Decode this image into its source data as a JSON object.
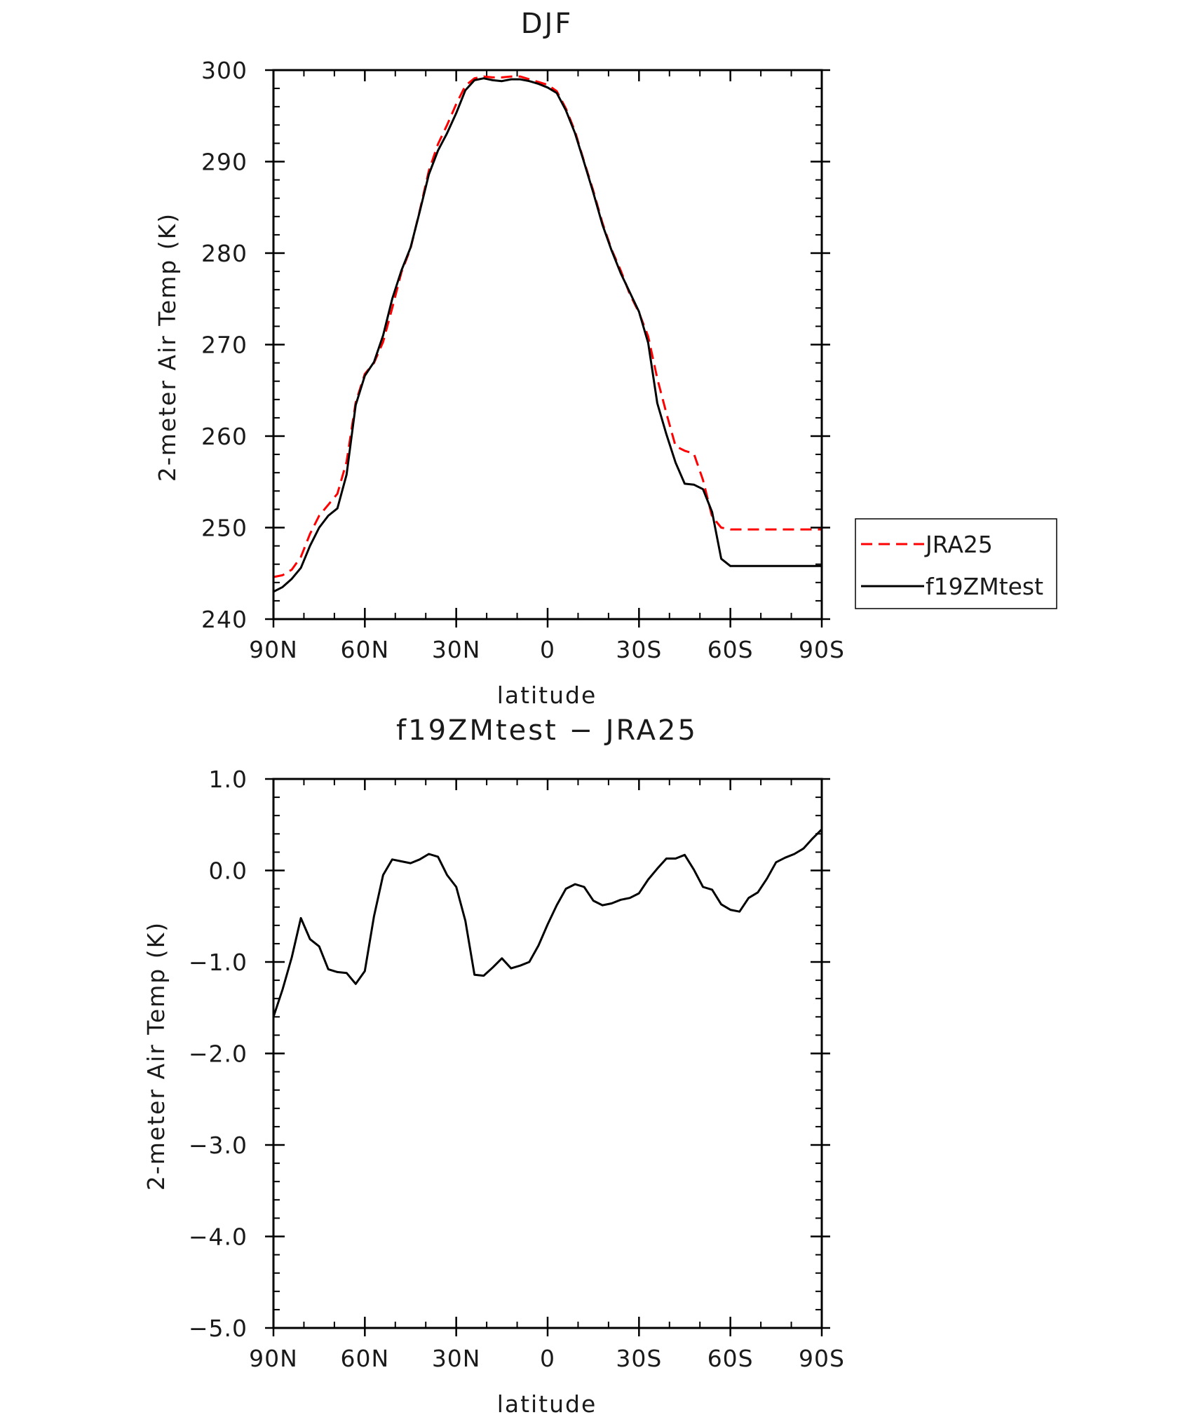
{
  "chart_data": [
    {
      "type": "line",
      "title": "DJF",
      "xlabel": "latitude",
      "ylabel": "2-meter Air Temp (K)",
      "x": [
        90,
        87,
        84,
        81,
        78,
        75,
        72,
        69,
        66,
        63,
        60,
        57,
        54,
        51,
        48,
        45,
        42,
        39,
        36,
        33,
        30,
        27,
        24,
        21,
        18,
        15,
        12,
        9,
        6,
        3,
        0,
        -3,
        -6,
        -9,
        -12,
        -15,
        -18,
        -21,
        -24,
        -27,
        -30,
        -33,
        -36,
        -39,
        -42,
        -45,
        -48,
        -51,
        -54,
        -57,
        -60,
        -63,
        -66,
        -69,
        -72,
        -75,
        -78,
        -81,
        -84,
        -87,
        -90
      ],
      "xlim": [
        90,
        -90
      ],
      "xticks": [
        90,
        60,
        30,
        0,
        -30,
        -60,
        -90
      ],
      "xticklabels": [
        "90N",
        "60N",
        "30N",
        "0",
        "30S",
        "60S",
        "90S"
      ],
      "ylim": [
        240,
        300
      ],
      "yticks": [
        240,
        250,
        260,
        270,
        280,
        290,
        300
      ],
      "yticklabels": [
        "240",
        "250",
        "260",
        "270",
        "280",
        "290",
        "300"
      ],
      "series": [
        {
          "name": "JRA25",
          "color": "#ff0000",
          "style": "dashed",
          "values": [
            244.6,
            244.8,
            245.4,
            246.8,
            249.3,
            251.3,
            252.5,
            253.7,
            257.2,
            263.7,
            266.8,
            268.0,
            270.3,
            274.0,
            277.9,
            280.5,
            284.6,
            289.0,
            291.9,
            294.0,
            296.3,
            298.3,
            299.1,
            299.3,
            299.2,
            299.2,
            299.3,
            299.3,
            299.0,
            298.7,
            298.4,
            297.7,
            295.8,
            293.3,
            290.0,
            286.8,
            283.3,
            280.4,
            278.1,
            275.5,
            273.5,
            270.9,
            266.3,
            262.5,
            258.9,
            258.4,
            258.1,
            255.2,
            251.2,
            250.0,
            249.8,
            249.8,
            249.8,
            249.8,
            249.8,
            249.8,
            249.8,
            249.8,
            249.8,
            249.8,
            249.8
          ]
        },
        {
          "name": "f19ZMtest",
          "color": "#000000",
          "style": "solid",
          "values": [
            243.0,
            243.5,
            244.4,
            245.6,
            248.0,
            250.0,
            251.3,
            252.1,
            255.8,
            263.4,
            266.6,
            268.1,
            271.0,
            275.0,
            278.1,
            280.6,
            284.5,
            288.6,
            291.2,
            293.1,
            295.3,
            297.8,
            298.9,
            299.1,
            298.9,
            298.8,
            299.0,
            299.0,
            298.8,
            298.5,
            298.1,
            297.5,
            295.6,
            293.1,
            289.9,
            286.6,
            283.1,
            280.3,
            277.8,
            275.7,
            273.6,
            270.2,
            263.6,
            260.2,
            257.1,
            254.8,
            254.7,
            254.2,
            251.7,
            246.6,
            245.8,
            245.8,
            245.8,
            245.8,
            245.8,
            245.8,
            245.8,
            245.8,
            245.8,
            245.8,
            245.8
          ]
        }
      ],
      "legend": "right",
      "grid": false
    },
    {
      "type": "line",
      "title": "f19ZMtest − JRA25",
      "xlabel": "latitude",
      "ylabel": "2-meter Air Temp (K)",
      "x": [
        90,
        87,
        84,
        81,
        78,
        75,
        72,
        69,
        66,
        63,
        60,
        57,
        54,
        51,
        48,
        45,
        42,
        39,
        36,
        33,
        30,
        27,
        24,
        21,
        18,
        15,
        12,
        9,
        6,
        3,
        0,
        -3,
        -6,
        -9,
        -12,
        -15,
        -18,
        -21,
        -24,
        -27,
        -30,
        -33,
        -36,
        -39,
        -42,
        -45,
        -48,
        -51,
        -54,
        -57,
        -60,
        -63,
        -66,
        -69,
        -72,
        -75,
        -78,
        -81,
        -84,
        -87,
        -90
      ],
      "xlim": [
        90,
        -90
      ],
      "xticks": [
        90,
        60,
        30,
        0,
        -30,
        -60,
        -90
      ],
      "xticklabels": [
        "90N",
        "60N",
        "30N",
        "0",
        "30S",
        "60S",
        "90S"
      ],
      "ylim": [
        -5.0,
        1.0
      ],
      "yticks": [
        -5.0,
        -4.0,
        -3.0,
        -2.0,
        -1.0,
        0.0,
        1.0
      ],
      "yticklabels": [
        "−5.0",
        "−4.0",
        "−3.0",
        "−2.0",
        "−1.0",
        "0.0",
        "1.0"
      ],
      "series": [
        {
          "color": "#000000",
          "style": "solid",
          "values": [
            -1.6,
            -1.3,
            -0.95,
            -0.52,
            -0.75,
            -0.83,
            -1.08,
            -1.11,
            -1.12,
            -1.24,
            -1.1,
            -0.5,
            -0.05,
            0.12,
            0.1,
            0.08,
            0.12,
            0.18,
            0.15,
            -0.05,
            -0.18,
            -0.55,
            -1.14,
            -1.15,
            -1.06,
            -0.96,
            -1.07,
            -1.04,
            -1.0,
            -0.82,
            -0.59,
            -0.38,
            -0.2,
            -0.15,
            -0.18,
            -0.33,
            -0.38,
            -0.36,
            -0.32,
            -0.3,
            -0.25,
            -0.1,
            0.02,
            0.13,
            0.13,
            0.17,
            0.01,
            -0.18,
            -0.21,
            -0.37,
            -0.43,
            -0.45,
            -0.3,
            -0.24,
            -0.09,
            0.09,
            0.14,
            0.18,
            0.24,
            0.35,
            0.45
          ]
        }
      ],
      "legend": "none",
      "grid": false
    }
  ]
}
